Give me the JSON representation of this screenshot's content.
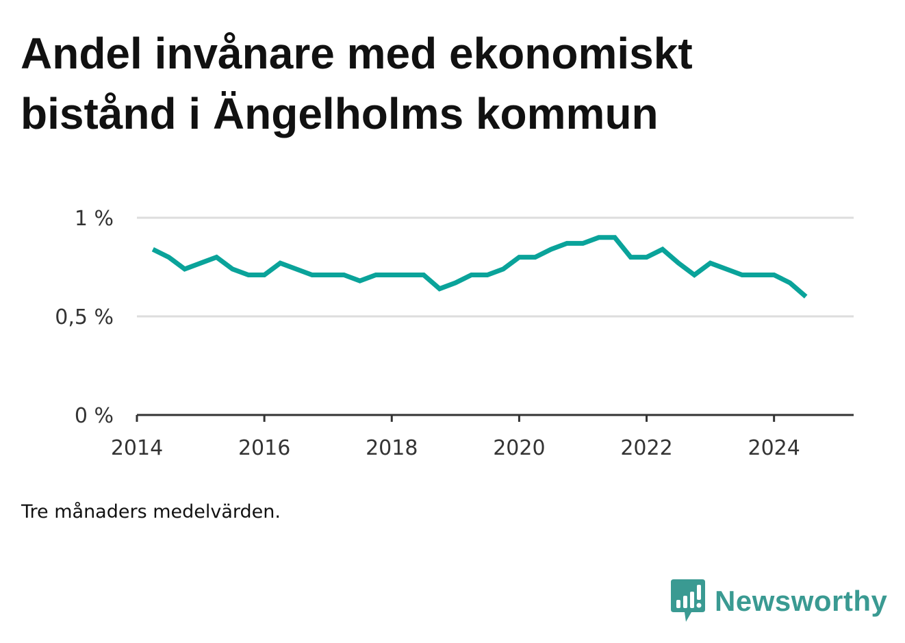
{
  "title": "Andel invånare med ekonomiskt bistånd i Ängelholms kommun",
  "note": "Tre månaders medelvärden.",
  "brand": {
    "name": "Newsworthy",
    "logo_icon": "bar-chart-speech-bubble-icon"
  },
  "colors": {
    "line": "#0aa39a",
    "grid": "#dddddd",
    "axis": "#333333",
    "brand": "#3a9a92"
  },
  "chart_data": {
    "type": "line",
    "title": "Andel invånare med ekonomiskt bistånd i Ängelholms kommun",
    "xlabel": "",
    "ylabel": "",
    "x_ticks": [
      "2014",
      "2016",
      "2018",
      "2020",
      "2022",
      "2024"
    ],
    "y_ticks": [
      "0 %",
      "0,5 %",
      "1 %"
    ],
    "ylim": [
      0,
      1.0
    ],
    "xlim": [
      "2014-01",
      "2025-04"
    ],
    "grid": true,
    "series": [
      {
        "x": [
          "2014-04",
          "2014-07",
          "2014-10",
          "2015-01",
          "2015-04",
          "2015-07",
          "2015-10",
          "2016-01",
          "2016-04",
          "2016-07",
          "2016-10",
          "2017-01",
          "2017-04",
          "2017-07",
          "2017-10",
          "2018-01",
          "2018-04",
          "2018-07",
          "2018-10",
          "2019-01",
          "2019-04",
          "2019-07",
          "2019-10",
          "2020-01",
          "2020-04",
          "2020-07",
          "2020-10",
          "2021-01",
          "2021-04",
          "2021-07",
          "2021-10",
          "2022-01",
          "2022-04",
          "2022-07",
          "2022-10",
          "2023-01",
          "2023-04",
          "2023-07",
          "2023-10",
          "2024-01",
          "2024-04",
          "2024-07"
        ],
        "values": [
          0.84,
          0.8,
          0.74,
          0.77,
          0.8,
          0.74,
          0.71,
          0.71,
          0.77,
          0.74,
          0.71,
          0.71,
          0.71,
          0.68,
          0.71,
          0.71,
          0.71,
          0.71,
          0.64,
          0.67,
          0.71,
          0.71,
          0.74,
          0.8,
          0.8,
          0.84,
          0.87,
          0.87,
          0.9,
          0.9,
          0.8,
          0.8,
          0.84,
          0.77,
          0.71,
          0.77,
          0.74,
          0.71,
          0.71,
          0.71,
          0.67,
          0.6
        ]
      }
    ]
  }
}
